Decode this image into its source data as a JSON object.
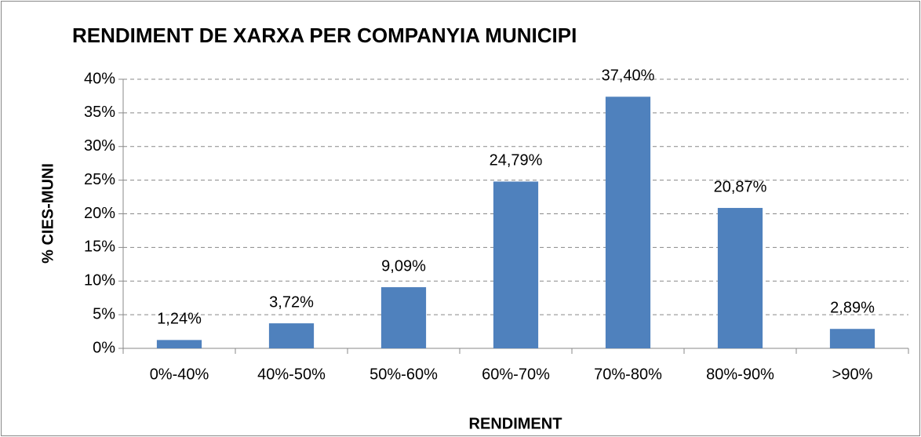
{
  "chart_data": {
    "type": "bar",
    "title": "RENDIMENT DE XARXA PER COMPANYIA MUNICIPI",
    "x_label": "RENDIMENT",
    "y_label": "% CIES-MUNI",
    "categories": [
      "0%-40%",
      "40%-50%",
      "50%-60%",
      "60%-70%",
      "70%-80%",
      "80%-90%",
      ">90%"
    ],
    "values": [
      1.24,
      3.72,
      9.09,
      24.79,
      37.4,
      20.87,
      2.89
    ],
    "value_labels": [
      "1,24%",
      "3,72%",
      "9,09%",
      "24,79%",
      "37,40%",
      "20,87%",
      "2,89%"
    ],
    "color": "#4f81bd",
    "ylim": [
      0,
      40
    ],
    "yticks": [
      {
        "value": 0,
        "label": "0%"
      },
      {
        "value": 5,
        "label": "5%"
      },
      {
        "value": 10,
        "label": "10%"
      },
      {
        "value": 15,
        "label": "15%"
      },
      {
        "value": 20,
        "label": "20%"
      },
      {
        "value": 25,
        "label": "25%"
      },
      {
        "value": 30,
        "label": "30%"
      },
      {
        "value": 35,
        "label": "35%"
      },
      {
        "value": 40,
        "label": "40%"
      }
    ],
    "grid": true
  }
}
